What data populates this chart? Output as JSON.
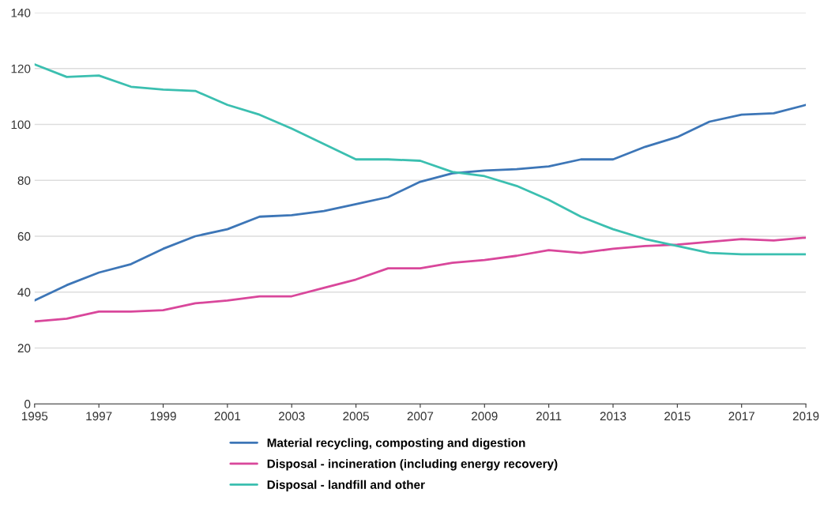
{
  "chart_data": {
    "type": "line",
    "x": [
      1995,
      1996,
      1997,
      1998,
      1999,
      2000,
      2001,
      2002,
      2003,
      2004,
      2005,
      2006,
      2007,
      2008,
      2009,
      2010,
      2011,
      2012,
      2013,
      2014,
      2015,
      2016,
      2017,
      2018,
      2019
    ],
    "series": [
      {
        "name": "Material recycling, composting and digestion",
        "color": "#3d76b7",
        "values": [
          37,
          42.5,
          47,
          50,
          55.5,
          60,
          62.5,
          67,
          67.5,
          69,
          71.5,
          74,
          79.5,
          82.5,
          83.5,
          84,
          85,
          87.5,
          87.5,
          92,
          95.5,
          101,
          103.5,
          104,
          107
        ]
      },
      {
        "name": "Disposal - incineration (including energy recovery)",
        "color": "#d9479b",
        "values": [
          29.5,
          30.5,
          33,
          33,
          33.5,
          36,
          37,
          38.5,
          38.5,
          41.5,
          44.5,
          48.5,
          48.5,
          50.5,
          51.5,
          53,
          55,
          54,
          55.5,
          56.5,
          57,
          58,
          59,
          58.5,
          59.5
        ]
      },
      {
        "name": "Disposal - landfill and other",
        "color": "#3bbfb0",
        "values": [
          121.5,
          117,
          117.5,
          113.5,
          112.5,
          112,
          107,
          103.5,
          98.5,
          93,
          87.5,
          87.5,
          87,
          83,
          81.5,
          78,
          73,
          67,
          62.5,
          59,
          56.5,
          54,
          53.5,
          53.5,
          53.5
        ]
      }
    ],
    "xlim": [
      1995,
      2019
    ],
    "xticks": [
      1995,
      1997,
      1999,
      2001,
      2003,
      2005,
      2007,
      2009,
      2011,
      2013,
      2015,
      2017,
      2019
    ],
    "ylim": [
      0,
      140
    ],
    "yticks": [
      0,
      20,
      40,
      60,
      80,
      100,
      120,
      140
    ],
    "grid": "y",
    "legend": "bottom",
    "marker": "none",
    "line_style": "solid"
  }
}
